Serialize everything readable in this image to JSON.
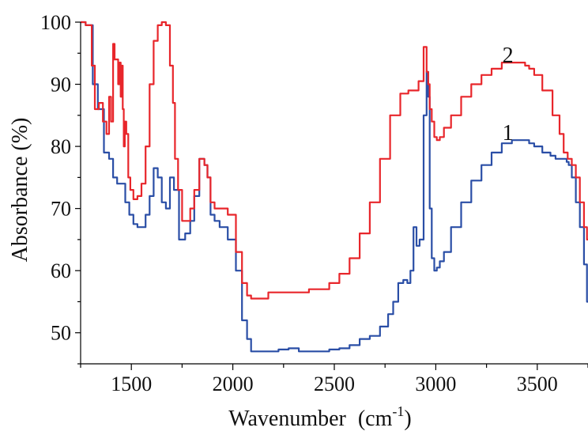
{
  "chart_data": {
    "type": "line",
    "title": "",
    "xlabel": "Wavenumber",
    "xlabel_unit_prefix": "(cm",
    "xlabel_unit_exp": "-1",
    "xlabel_unit_suffix": ")",
    "ylabel": "Absorbance  (%)",
    "xlim": [
      1250,
      3750
    ],
    "ylim": [
      45,
      100
    ],
    "x_ticks": [
      1500,
      2000,
      2500,
      3000,
      3500
    ],
    "x_tick_labels": [
      "1500",
      "2000",
      "2500",
      "3000",
      "3500"
    ],
    "x_minor_ticks": [
      1250,
      1750,
      2250,
      2750,
      3250,
      3750
    ],
    "y_ticks": [
      50,
      60,
      70,
      80,
      90,
      100
    ],
    "y_tick_labels": [
      "50",
      "60",
      "70",
      "80",
      "90",
      "100"
    ],
    "grid": false,
    "legend": "none",
    "series": [
      {
        "label": "1",
        "color": "#2a4ea6",
        "label_at": [
          3250,
          80.5
        ],
        "x": [
          1250,
          1300,
          1320,
          1350,
          1380,
          1400,
          1420,
          1440,
          1460,
          1480,
          1500,
          1520,
          1540,
          1560,
          1580,
          1600,
          1620,
          1640,
          1660,
          1680,
          1700,
          1720,
          1750,
          1780,
          1800,
          1820,
          1850,
          1870,
          1880,
          1900,
          1920,
          1950,
          2000,
          2030,
          2060,
          2080,
          2100,
          2130,
          2150,
          2200,
          2250,
          2300,
          2350,
          2400,
          2450,
          2500,
          2550,
          2600,
          2650,
          2700,
          2750,
          2780,
          2800,
          2830,
          2850,
          2870,
          2880,
          2900,
          2910,
          2930,
          2950,
          2960,
          2965,
          2975,
          2985,
          3000,
          3010,
          3030,
          3050,
          3100,
          3150,
          3200,
          3250,
          3300,
          3350,
          3400,
          3430,
          3450,
          3470,
          3500,
          3550,
          3580,
          3600,
          3620,
          3640,
          3650,
          3660,
          3680,
          3700,
          3720,
          3740,
          3750
        ],
        "y": [
          100,
          99.5,
          90,
          86,
          79,
          78,
          75,
          74,
          74,
          71,
          69,
          67.5,
          67,
          67,
          69,
          72,
          76.5,
          75,
          71,
          70,
          75,
          73,
          65,
          66,
          68,
          72,
          78,
          77,
          75,
          69,
          68,
          67,
          65,
          60,
          52,
          49,
          47,
          47,
          47,
          47,
          47.3,
          47.5,
          47,
          47,
          47,
          47.3,
          47.5,
          48,
          49,
          49.5,
          51,
          53,
          55,
          58,
          58.5,
          58,
          60,
          67,
          64,
          65,
          85,
          92,
          88,
          70,
          62,
          60,
          60.5,
          61.5,
          63,
          67,
          71,
          74.5,
          77,
          79,
          80.5,
          81,
          81,
          81,
          80.5,
          80,
          79,
          78.5,
          78,
          78,
          78,
          77.5,
          77,
          75,
          71,
          67,
          61,
          55
        ]
      },
      {
        "label": "2",
        "color": "#e8262b",
        "label_at": [
          3250,
          93
        ],
        "x": [
          1250,
          1300,
          1310,
          1330,
          1350,
          1370,
          1385,
          1395,
          1405,
          1415,
          1420,
          1430,
          1440,
          1445,
          1450,
          1455,
          1460,
          1465,
          1470,
          1480,
          1490,
          1500,
          1520,
          1540,
          1560,
          1580,
          1600,
          1620,
          1640,
          1660,
          1680,
          1700,
          1710,
          1720,
          1740,
          1760,
          1780,
          1800,
          1820,
          1850,
          1870,
          1880,
          1900,
          1920,
          1950,
          2000,
          2030,
          2060,
          2080,
          2100,
          2130,
          2150,
          2200,
          2250,
          2300,
          2350,
          2400,
          2450,
          2500,
          2550,
          2600,
          2650,
          2700,
          2750,
          2800,
          2850,
          2880,
          2900,
          2930,
          2950,
          2960,
          2965,
          2975,
          2985,
          3000,
          3010,
          3030,
          3050,
          3100,
          3150,
          3200,
          3250,
          3300,
          3350,
          3380,
          3400,
          3430,
          3450,
          3470,
          3500,
          3550,
          3600,
          3620,
          3640,
          3660,
          3680,
          3700,
          3720,
          3740,
          3750
        ],
        "y": [
          100,
          99.5,
          93,
          86,
          87,
          84,
          82,
          88,
          84,
          96.5,
          94,
          94,
          90,
          93.5,
          88,
          93,
          86,
          80,
          84,
          82,
          75,
          73,
          71.5,
          72,
          74,
          80,
          90,
          97,
          99.5,
          100,
          99.5,
          93,
          87,
          78,
          73,
          68,
          68,
          70,
          73,
          78,
          77,
          75,
          71,
          70,
          70,
          69,
          63,
          58,
          56,
          55.5,
          55.5,
          55.5,
          56.5,
          56.5,
          56.5,
          56.5,
          57,
          57,
          58,
          59.5,
          62,
          66,
          71,
          78,
          85,
          88.5,
          89,
          89,
          90.5,
          96,
          92,
          90,
          86,
          84,
          81.5,
          81,
          81.5,
          83,
          85,
          88,
          90,
          91.5,
          92.5,
          93.5,
          93.5,
          93.5,
          93.5,
          93,
          92.5,
          91.5,
          89,
          85,
          82,
          79,
          78,
          77,
          75,
          71,
          67,
          65
        ]
      }
    ]
  }
}
